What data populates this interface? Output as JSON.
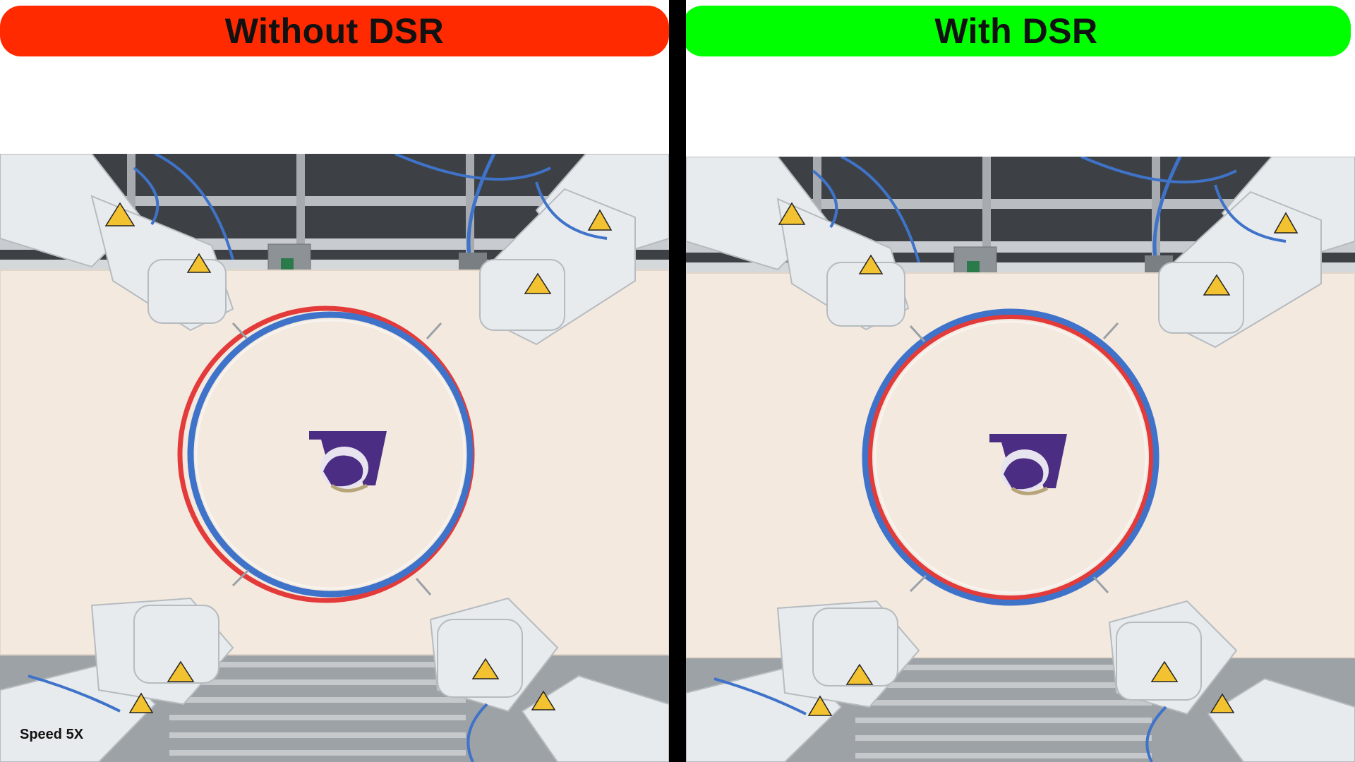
{
  "banners": {
    "left": {
      "label": "Without DSR",
      "color": "#ff2a00"
    },
    "right": {
      "label": "With DSR",
      "color": "#00ff00"
    }
  },
  "overlay": {
    "speed_label": "Speed 5X"
  },
  "scene": {
    "table_color": "#f3e9df",
    "robot_color": "#e8ebed",
    "ring_colors": {
      "red": "#e33a3a",
      "blue": "#3f73c9"
    },
    "logo_color": "#4b2e83",
    "icons": [
      "robot-arm-icon",
      "hoop-icon",
      "uw-logo-icon",
      "warning-label-icon"
    ]
  }
}
